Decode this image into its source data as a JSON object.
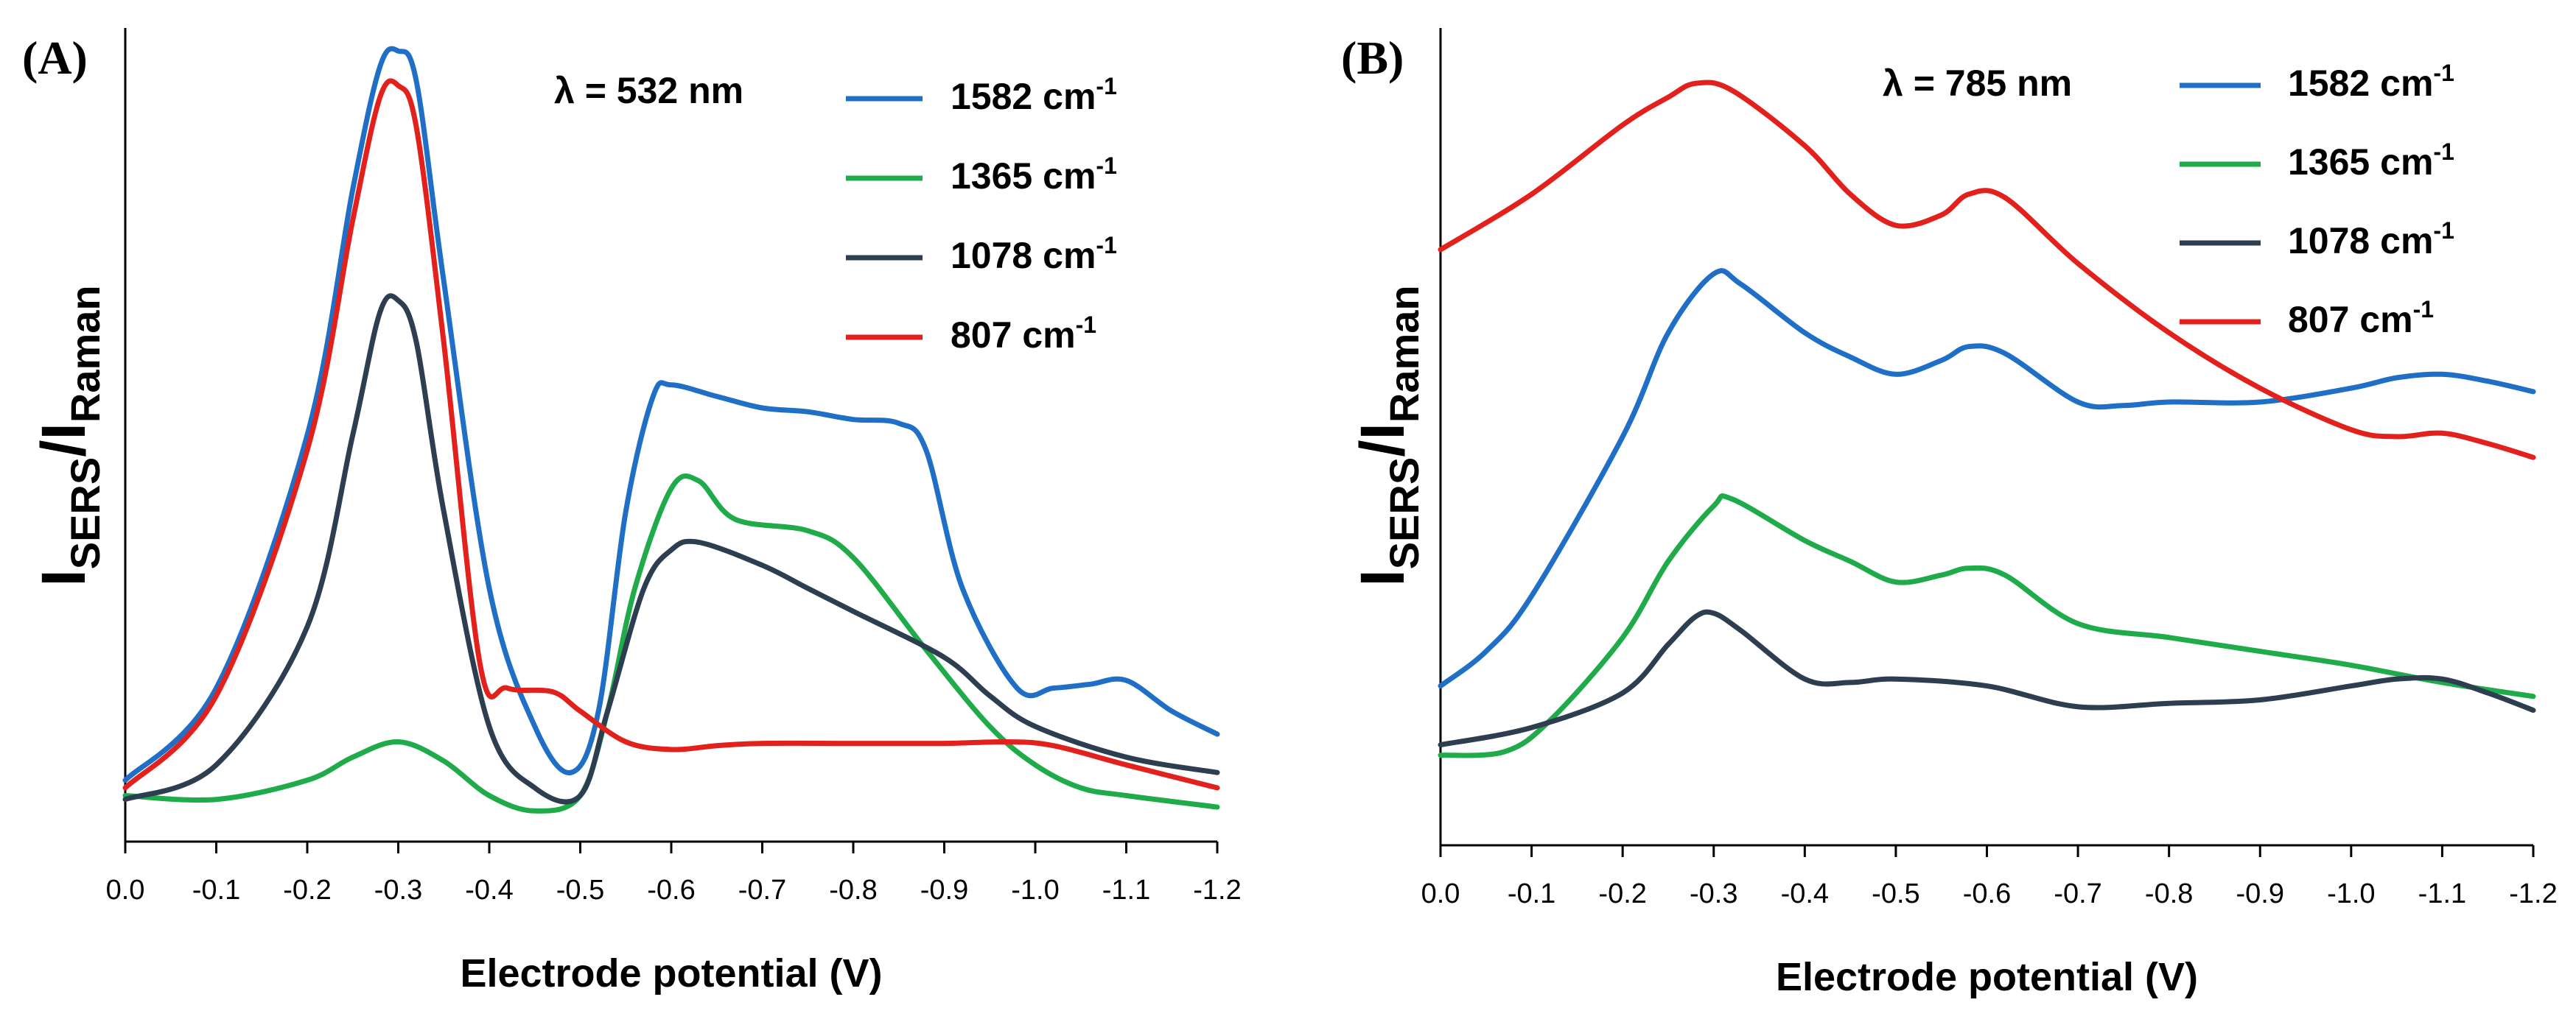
{
  "chart_data": [
    {
      "type": "line",
      "panel": "(A)",
      "annotation": "λ = 532 nm",
      "xlabel": "Electrode potential (V)",
      "ylabel_main": "I",
      "ylabel_sub1": "SERS",
      "ylabel_sep": "/I",
      "ylabel_sub2": "Raman",
      "xlim": [
        0.0,
        -1.2
      ],
      "ylim": [
        0,
        100
      ],
      "x_ticks": [
        "0.0",
        "-0.1",
        "-0.2",
        "-0.3",
        "-0.4",
        "-0.5",
        "-0.6",
        "-0.7",
        "-0.8",
        "-0.9",
        "-1.0",
        "-1.1",
        "-1.2"
      ],
      "x_tick_values": [
        0.0,
        -0.1,
        -0.2,
        -0.3,
        -0.4,
        -0.5,
        -0.6,
        -0.7,
        -0.8,
        -0.9,
        -1.0,
        -1.1,
        -1.2
      ],
      "legend_position": "top-right",
      "series": [
        {
          "name": "1582",
          "unit": "cm",
          "sup": "-1",
          "color": "#1f6fc6",
          "points": [
            [
              0.0,
              5
            ],
            [
              -0.1,
              17
            ],
            [
              -0.2,
              50
            ],
            [
              -0.25,
              82
            ],
            [
              -0.28,
              98
            ],
            [
              -0.3,
              100
            ],
            [
              -0.32,
              96
            ],
            [
              -0.35,
              70
            ],
            [
              -0.4,
              30
            ],
            [
              -0.45,
              12
            ],
            [
              -0.49,
              6
            ],
            [
              -0.52,
              14
            ],
            [
              -0.55,
              40
            ],
            [
              -0.58,
              55
            ],
            [
              -0.6,
              56.5
            ],
            [
              -0.65,
              55
            ],
            [
              -0.7,
              53.5
            ],
            [
              -0.75,
              53
            ],
            [
              -0.8,
              52
            ],
            [
              -0.85,
              51.5
            ],
            [
              -0.88,
              48
            ],
            [
              -0.92,
              30
            ],
            [
              -0.98,
              17
            ],
            [
              -1.02,
              17
            ],
            [
              -1.06,
              17.5
            ],
            [
              -1.1,
              18
            ],
            [
              -1.15,
              14
            ],
            [
              -1.2,
              11
            ]
          ]
        },
        {
          "name": "1365",
          "unit": "cm",
          "sup": "-1",
          "color": "#1fab49",
          "points": [
            [
              0.0,
              3
            ],
            [
              -0.1,
              2.5
            ],
            [
              -0.2,
              5
            ],
            [
              -0.25,
              8
            ],
            [
              -0.3,
              10
            ],
            [
              -0.35,
              7.5
            ],
            [
              -0.4,
              3
            ],
            [
              -0.45,
              1
            ],
            [
              -0.5,
              3
            ],
            [
              -0.53,
              14
            ],
            [
              -0.56,
              30
            ],
            [
              -0.6,
              43
            ],
            [
              -0.63,
              44
            ],
            [
              -0.67,
              39
            ],
            [
              -0.75,
              37.5
            ],
            [
              -0.8,
              34
            ],
            [
              -0.88,
              22
            ],
            [
              -0.95,
              12
            ],
            [
              -1.0,
              7
            ],
            [
              -1.05,
              4
            ],
            [
              -1.1,
              3
            ],
            [
              -1.2,
              1.5
            ]
          ]
        },
        {
          "name": "1078",
          "unit": "cm",
          "sup": "-1",
          "color": "#2c3e50",
          "points": [
            [
              0.0,
              2.5
            ],
            [
              -0.1,
              7
            ],
            [
              -0.2,
              25
            ],
            [
              -0.25,
              50
            ],
            [
              -0.28,
              66
            ],
            [
              -0.3,
              67.5
            ],
            [
              -0.32,
              62
            ],
            [
              -0.35,
              40
            ],
            [
              -0.4,
              12
            ],
            [
              -0.45,
              4
            ],
            [
              -0.5,
              3
            ],
            [
              -0.53,
              14
            ],
            [
              -0.57,
              30
            ],
            [
              -0.6,
              35
            ],
            [
              -0.63,
              36
            ],
            [
              -0.7,
              33
            ],
            [
              -0.75,
              30
            ],
            [
              -0.8,
              27
            ],
            [
              -0.9,
              21
            ],
            [
              -0.95,
              16
            ],
            [
              -1.0,
              12
            ],
            [
              -1.1,
              8
            ],
            [
              -1.2,
              6
            ]
          ]
        },
        {
          "name": "807",
          "unit": "cm",
          "sup": "-1",
          "color": "#e3211c",
          "points": [
            [
              0.0,
              4
            ],
            [
              -0.1,
              16
            ],
            [
              -0.2,
              48
            ],
            [
              -0.25,
              78
            ],
            [
              -0.28,
              94
            ],
            [
              -0.3,
              95.5
            ],
            [
              -0.32,
              90
            ],
            [
              -0.35,
              62
            ],
            [
              -0.39,
              20
            ],
            [
              -0.42,
              17
            ],
            [
              -0.47,
              16.5
            ],
            [
              -0.5,
              14
            ],
            [
              -0.55,
              10
            ],
            [
              -0.6,
              9
            ],
            [
              -0.65,
              9.5
            ],
            [
              -0.7,
              9.8
            ],
            [
              -0.8,
              9.8
            ],
            [
              -0.9,
              9.8
            ],
            [
              -0.97,
              10
            ],
            [
              -1.02,
              9.5
            ],
            [
              -1.1,
              7
            ],
            [
              -1.2,
              4
            ]
          ]
        }
      ]
    },
    {
      "type": "line",
      "panel": "(B)",
      "annotation": "λ = 785 nm",
      "xlabel": "Electrode potential (V)",
      "ylabel_main": "I",
      "ylabel_sub1": "SERS",
      "ylabel_sep": "/I",
      "ylabel_sub2": "Raman",
      "xlim": [
        0.0,
        -1.2
      ],
      "ylim": [
        0,
        100
      ],
      "x_ticks": [
        "0.0",
        "-0.1",
        "-0.2",
        "-0.3",
        "-0.4",
        "-0.5",
        "-0.6",
        "-0.7",
        "-0.8",
        "-0.9",
        "-1.0",
        "-1.1",
        "-1.2"
      ],
      "x_tick_values": [
        0.0,
        -0.1,
        -0.2,
        -0.3,
        -0.4,
        -0.5,
        -0.6,
        -0.7,
        -0.8,
        -0.9,
        -1.0,
        -1.1,
        -1.2
      ],
      "legend_position": "top-right",
      "series": [
        {
          "name": "1582",
          "unit": "cm",
          "sup": "-1",
          "color": "#1f6fc6",
          "points": [
            [
              0.0,
              15
            ],
            [
              -0.05,
              20
            ],
            [
              -0.1,
              28
            ],
            [
              -0.2,
              51
            ],
            [
              -0.25,
              66
            ],
            [
              -0.3,
              74.5
            ],
            [
              -0.33,
              73
            ],
            [
              -0.4,
              66
            ],
            [
              -0.45,
              62.5
            ],
            [
              -0.5,
              60
            ],
            [
              -0.55,
              62
            ],
            [
              -0.58,
              64
            ],
            [
              -0.62,
              63
            ],
            [
              -0.7,
              56
            ],
            [
              -0.75,
              55.5
            ],
            [
              -0.8,
              56
            ],
            [
              -0.9,
              56
            ],
            [
              -1.0,
              58
            ],
            [
              -1.05,
              59.5
            ],
            [
              -1.1,
              60
            ],
            [
              -1.15,
              59
            ],
            [
              -1.2,
              57.5
            ]
          ]
        },
        {
          "name": "1365",
          "unit": "cm",
          "sup": "-1",
          "color": "#1fab49",
          "points": [
            [
              0.0,
              5
            ],
            [
              -0.07,
              5.5
            ],
            [
              -0.12,
              10
            ],
            [
              -0.2,
              22
            ],
            [
              -0.25,
              33
            ],
            [
              -0.3,
              41
            ],
            [
              -0.32,
              42
            ],
            [
              -0.4,
              36
            ],
            [
              -0.45,
              33
            ],
            [
              -0.5,
              30
            ],
            [
              -0.55,
              31
            ],
            [
              -0.58,
              32
            ],
            [
              -0.62,
              31
            ],
            [
              -0.7,
              24
            ],
            [
              -0.8,
              22
            ],
            [
              -0.9,
              20
            ],
            [
              -1.0,
              18
            ],
            [
              -1.1,
              15.5
            ],
            [
              -1.2,
              13.5
            ]
          ]
        },
        {
          "name": "1078",
          "unit": "cm",
          "sup": "-1",
          "color": "#2c3e50",
          "points": [
            [
              0.0,
              6.5
            ],
            [
              -0.1,
              9
            ],
            [
              -0.2,
              14
            ],
            [
              -0.25,
              21
            ],
            [
              -0.28,
              25
            ],
            [
              -0.3,
              25.5
            ],
            [
              -0.33,
              23
            ],
            [
              -0.4,
              16
            ],
            [
              -0.45,
              15.5
            ],
            [
              -0.5,
              16
            ],
            [
              -0.6,
              15
            ],
            [
              -0.7,
              12
            ],
            [
              -0.8,
              12.5
            ],
            [
              -0.9,
              13
            ],
            [
              -1.0,
              15
            ],
            [
              -1.05,
              16
            ],
            [
              -1.1,
              16
            ],
            [
              -1.15,
              14
            ],
            [
              -1.2,
              11.5
            ]
          ]
        },
        {
          "name": "807",
          "unit": "cm",
          "sup": "-1",
          "color": "#e3211c",
          "points": [
            [
              0.0,
              78
            ],
            [
              -0.1,
              86
            ],
            [
              -0.2,
              96
            ],
            [
              -0.25,
              100
            ],
            [
              -0.28,
              102
            ],
            [
              -0.32,
              101
            ],
            [
              -0.4,
              93
            ],
            [
              -0.45,
              86
            ],
            [
              -0.5,
              81.5
            ],
            [
              -0.55,
              83
            ],
            [
              -0.58,
              86
            ],
            [
              -0.62,
              85.5
            ],
            [
              -0.7,
              76
            ],
            [
              -0.8,
              66
            ],
            [
              -0.9,
              58
            ],
            [
              -1.0,
              52
            ],
            [
              -1.05,
              51
            ],
            [
              -1.1,
              51.5
            ],
            [
              -1.15,
              50
            ],
            [
              -1.2,
              48
            ]
          ]
        }
      ]
    }
  ]
}
